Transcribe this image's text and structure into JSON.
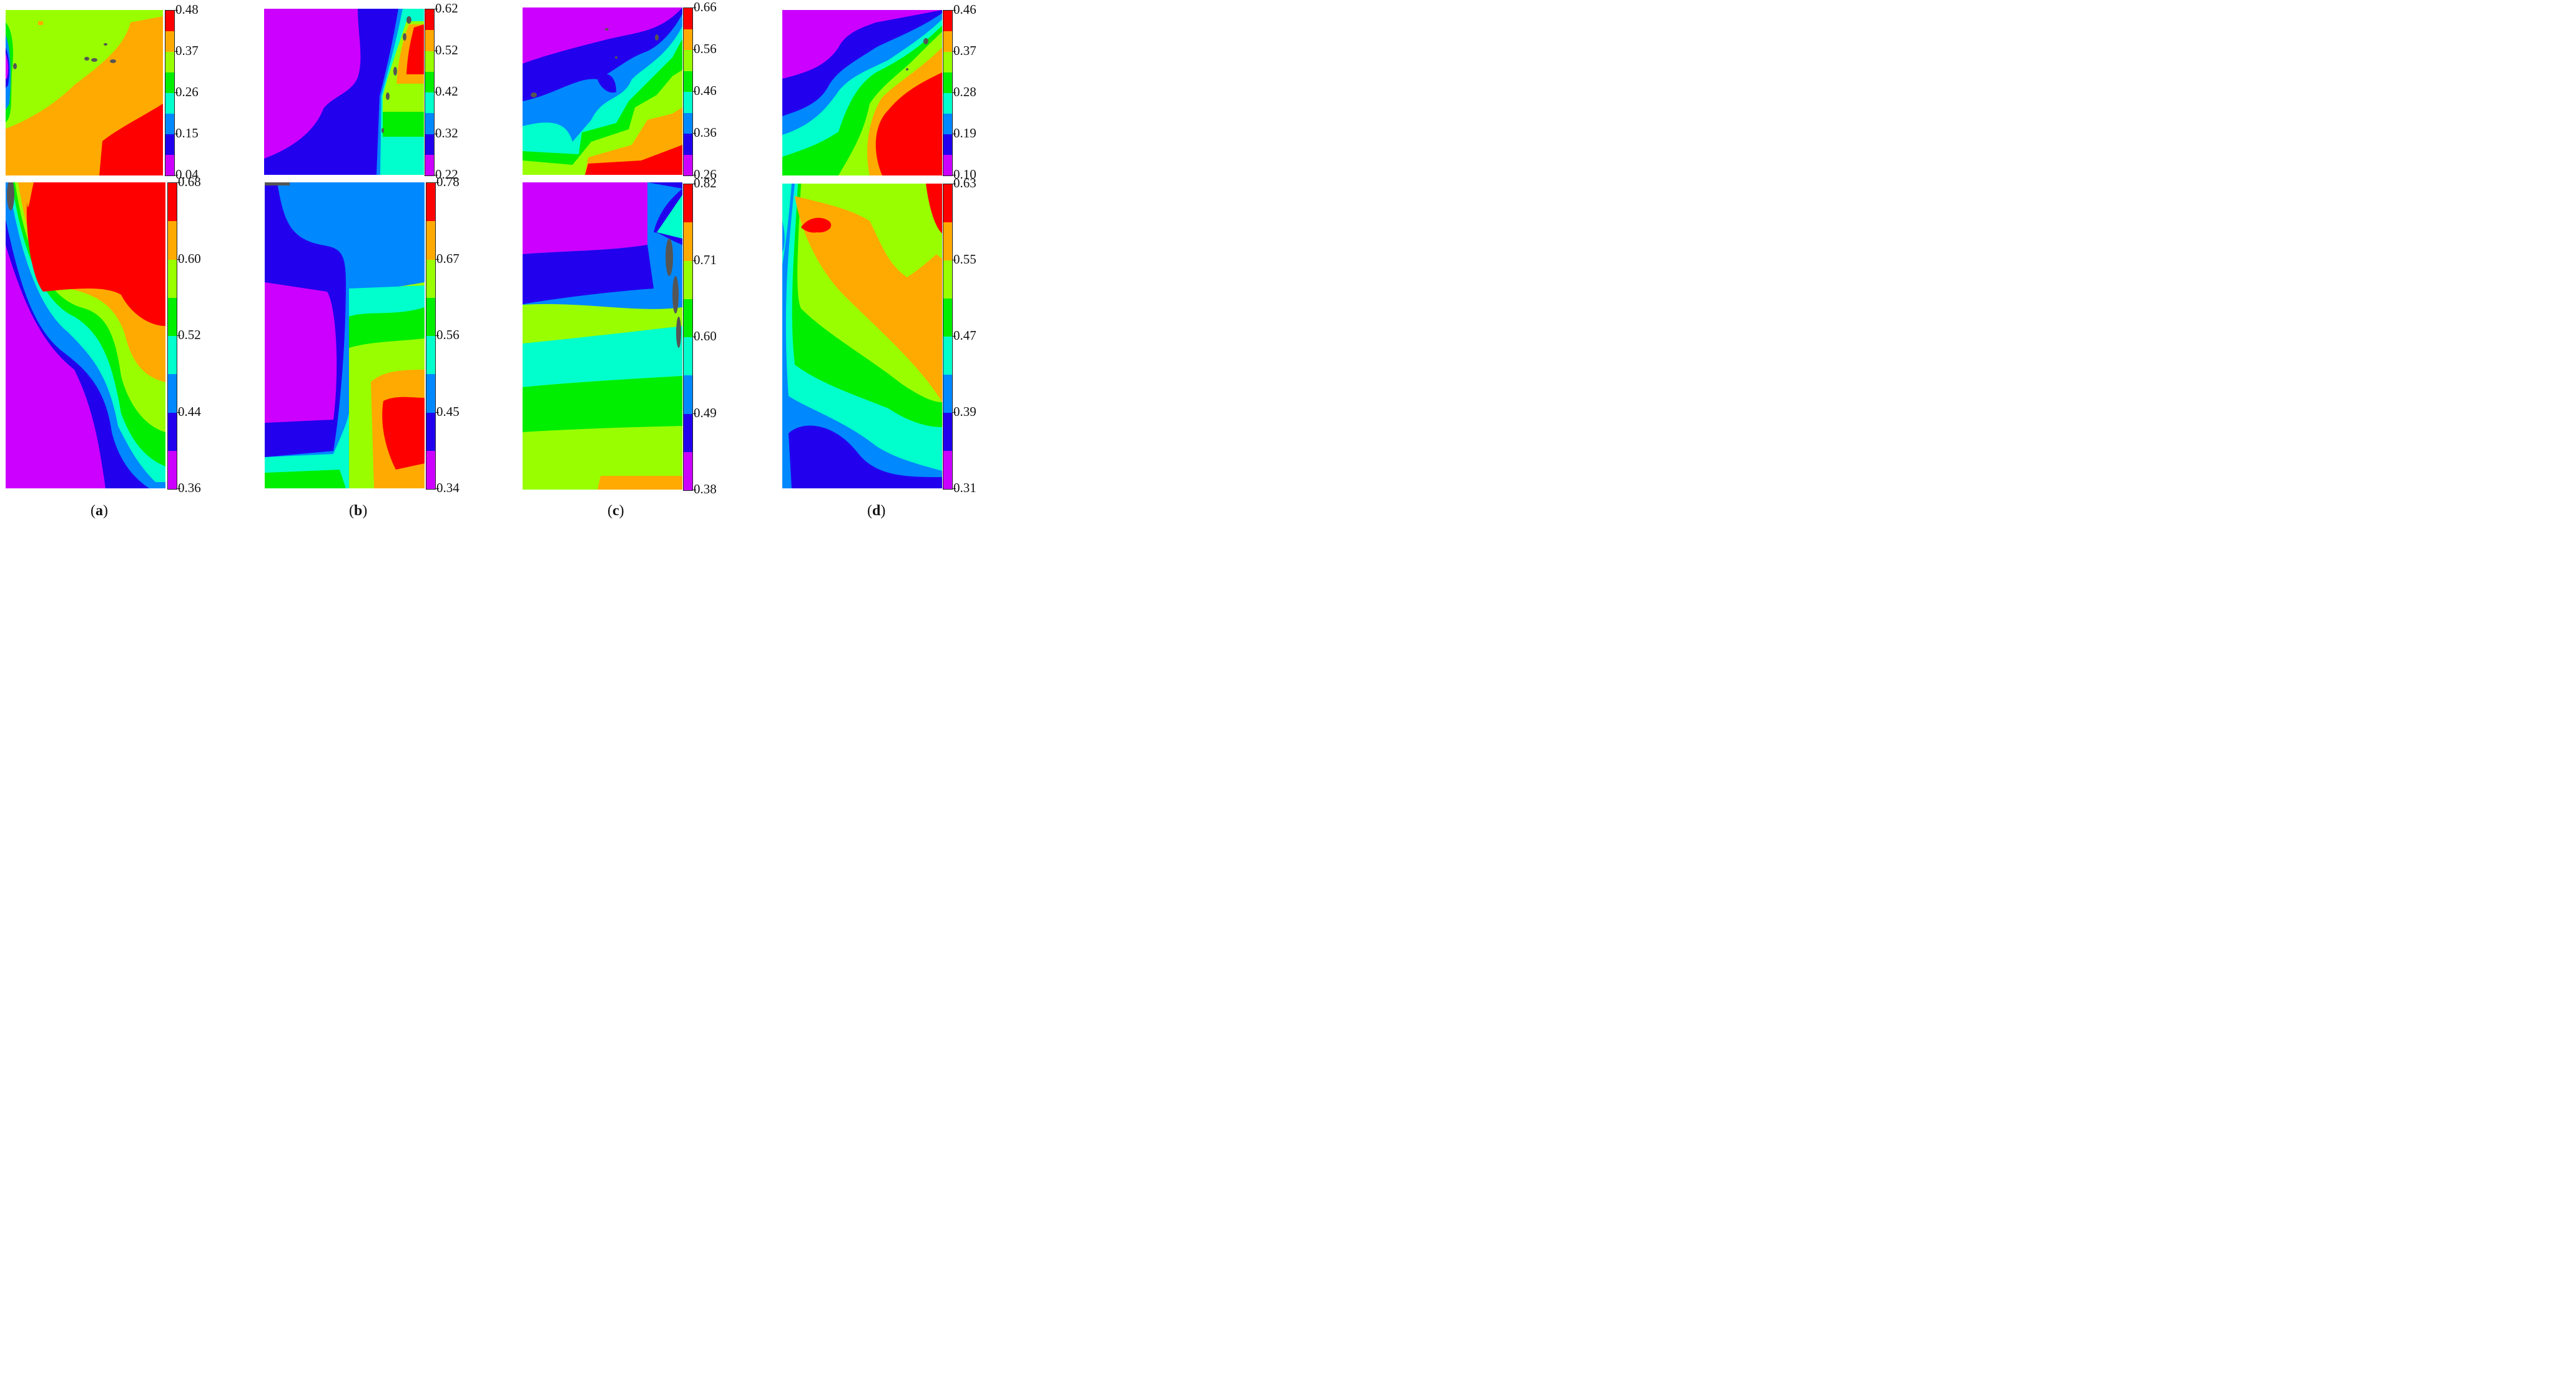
{
  "palette": [
    "#cc00ff",
    "#2200ee",
    "#0088ff",
    "#00ffcc",
    "#00ee00",
    "#99ff00",
    "#ffaa00",
    "#ff0000"
  ],
  "chart_data": [
    {
      "type": "heatmap",
      "panel": "a",
      "row": "top",
      "colorbar_ticks": [
        "0.48",
        "0.37",
        "0.26",
        "0.15",
        "0.04"
      ],
      "range": [
        0.04,
        0.48
      ],
      "levels": 8,
      "legend_placement": "right"
    },
    {
      "type": "heatmap",
      "panel": "b",
      "row": "top",
      "colorbar_ticks": [
        "0.62",
        "0.52",
        "0.42",
        "0.32",
        "0.22"
      ],
      "range": [
        0.22,
        0.62
      ],
      "levels": 8,
      "legend_placement": "right"
    },
    {
      "type": "heatmap",
      "panel": "c",
      "row": "top",
      "colorbar_ticks": [
        "0.66",
        "0.56",
        "0.46",
        "0.36",
        "0.26"
      ],
      "range": [
        0.26,
        0.66
      ],
      "levels": 8,
      "legend_placement": "right"
    },
    {
      "type": "heatmap",
      "panel": "d",
      "row": "top",
      "colorbar_ticks": [
        "0.46",
        "0.37",
        "0.28",
        "0.19",
        "0.10"
      ],
      "range": [
        0.1,
        0.46
      ],
      "levels": 8,
      "legend_placement": "right"
    },
    {
      "type": "heatmap",
      "panel": "a",
      "row": "bottom",
      "colorbar_ticks": [
        "0.68",
        "0.60",
        "0.52",
        "0.44",
        "0.36"
      ],
      "range": [
        0.36,
        0.68
      ],
      "levels": 8,
      "legend_placement": "right"
    },
    {
      "type": "heatmap",
      "panel": "b",
      "row": "bottom",
      "colorbar_ticks": [
        "0.78",
        "0.67",
        "0.56",
        "0.45",
        "0.34"
      ],
      "range": [
        0.34,
        0.78
      ],
      "levels": 8,
      "legend_placement": "right"
    },
    {
      "type": "heatmap",
      "panel": "c",
      "row": "bottom",
      "colorbar_ticks": [
        "0.82",
        "0.71",
        "0.60",
        "0.49",
        "0.38"
      ],
      "range": [
        0.38,
        0.82
      ],
      "levels": 8,
      "legend_placement": "right"
    },
    {
      "type": "heatmap",
      "panel": "d",
      "row": "bottom",
      "colorbar_ticks": [
        "0.63",
        "0.55",
        "0.47",
        "0.39",
        "0.31"
      ],
      "range": [
        0.31,
        0.63
      ],
      "levels": 8,
      "legend_placement": "right"
    }
  ],
  "panel_labels": {
    "a": "a",
    "b": "b",
    "c": "c",
    "d": "d"
  }
}
